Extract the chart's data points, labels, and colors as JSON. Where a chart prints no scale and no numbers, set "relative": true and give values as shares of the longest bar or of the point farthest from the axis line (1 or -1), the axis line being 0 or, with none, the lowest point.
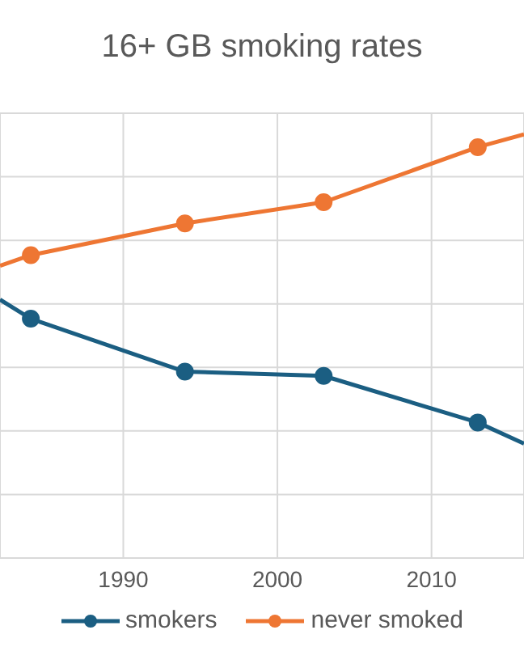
{
  "chart_data": {
    "type": "line",
    "title": "16+ GB smoking rates",
    "relative": true,
    "x": [
      1982,
      1984,
      1994,
      2003,
      2013,
      2016
    ],
    "xlim": [
      1982,
      2016
    ],
    "xticks": [
      1990,
      2000,
      2010
    ],
    "series": [
      {
        "name": "smokers",
        "color": "#1b5e82",
        "values": [
          0.61,
          0.565,
          0.44,
          0.43,
          0.32,
          0.27
        ]
      },
      {
        "name": "never smoked",
        "color": "#ee7633",
        "values": [
          0.69,
          0.715,
          0.79,
          0.84,
          0.97,
          1.0
        ]
      }
    ],
    "grid": true,
    "legend": "bottom",
    "marker": "circle",
    "line_style": "solid"
  }
}
